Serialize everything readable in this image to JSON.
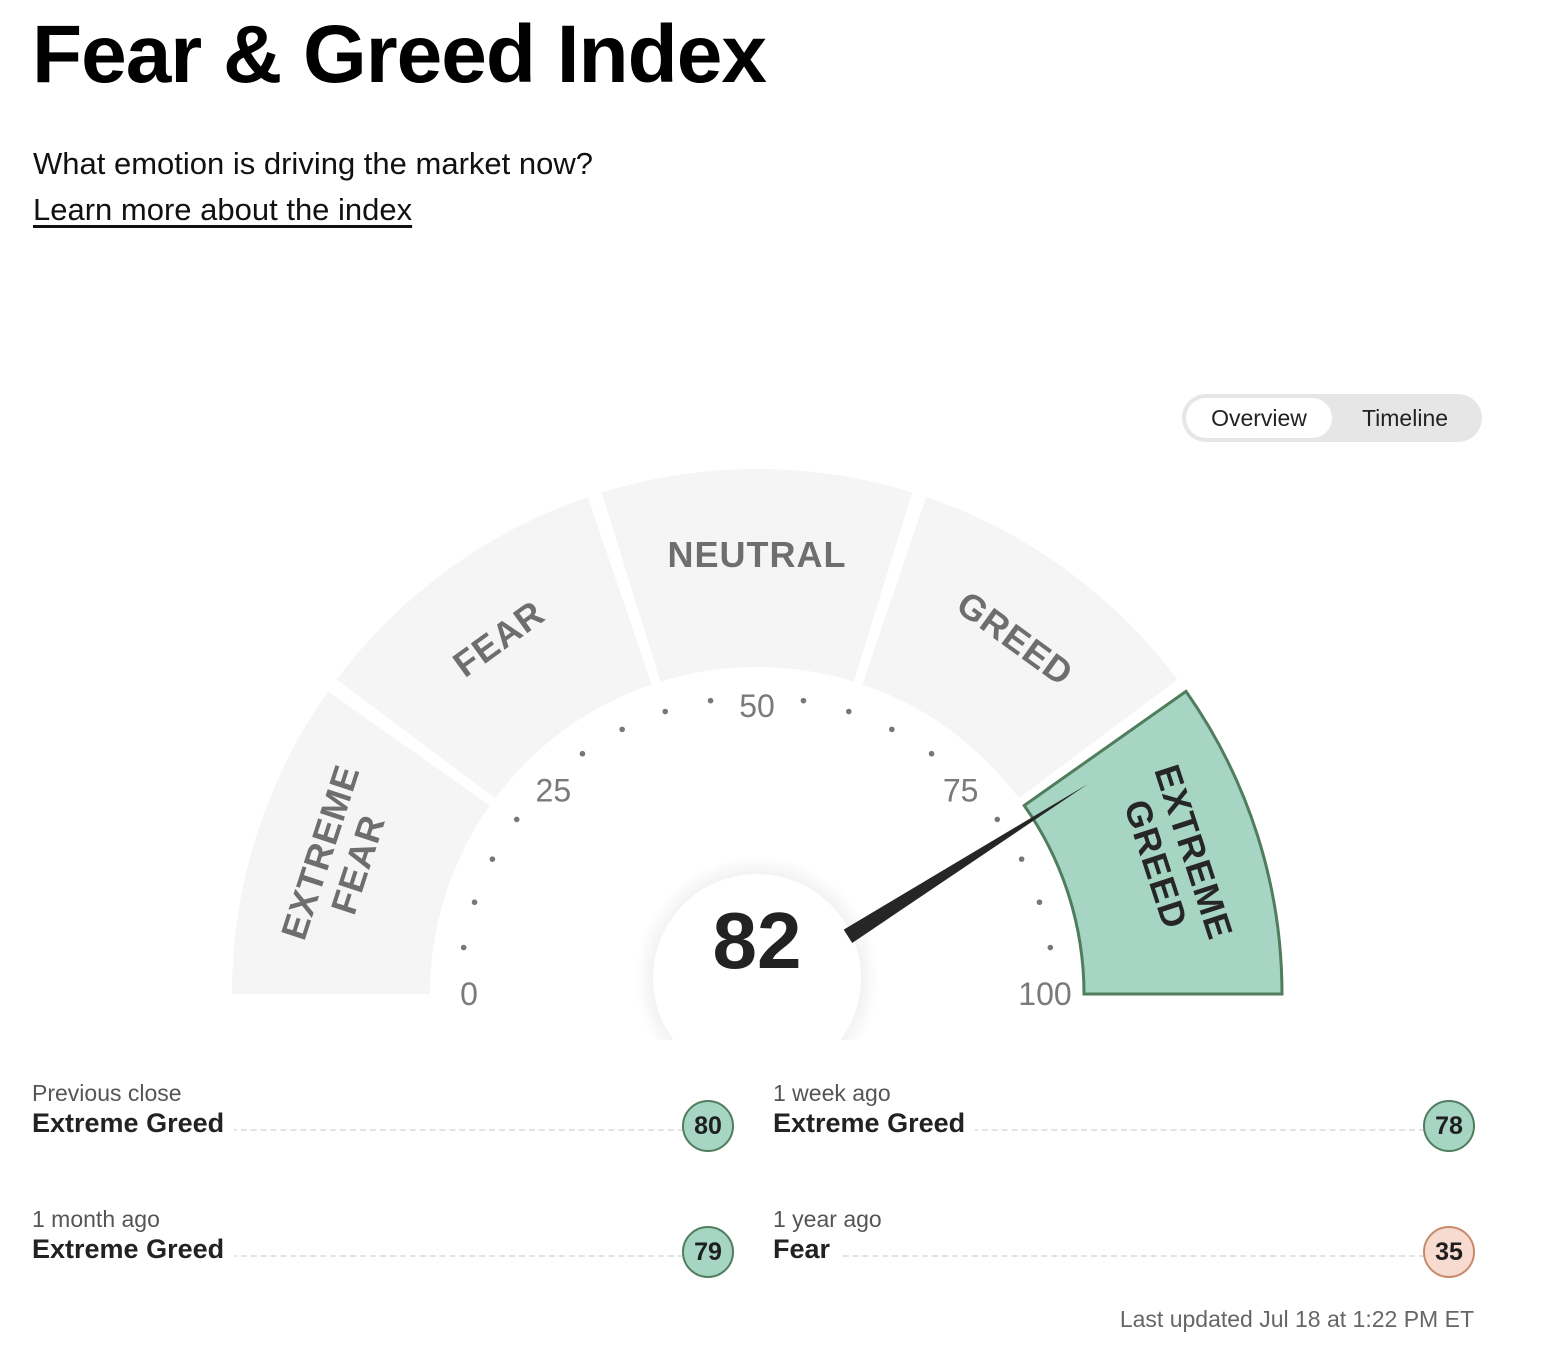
{
  "header": {
    "title": "Fear & Greed Index",
    "subtitle": "What emotion is driving the market now?",
    "learn_link": "Learn more about the index"
  },
  "view_toggle": {
    "options": [
      "Overview",
      "Timeline"
    ],
    "selected": "Overview"
  },
  "gauge": {
    "value": 82,
    "value_label": "82",
    "zones": [
      {
        "label_lines": [
          "EXTREME",
          "FEAR"
        ],
        "active": false
      },
      {
        "label_lines": [
          "FEAR"
        ],
        "active": false
      },
      {
        "label_lines": [
          "NEUTRAL"
        ],
        "active": false
      },
      {
        "label_lines": [
          "GREED"
        ],
        "active": false
      },
      {
        "label_lines": [
          "EXTREME",
          "GREED"
        ],
        "active": true
      }
    ],
    "ticks": [
      "0",
      "25",
      "50",
      "75",
      "100"
    ],
    "colors": {
      "inactive_zone": "#f5f5f5",
      "active_zone": "#a7d5c4",
      "active_zone_border": "#4f7d5d",
      "inactive_label": "#6e6e6e",
      "active_label": "#262626",
      "needle": "#262626"
    }
  },
  "history": [
    {
      "when": "Previous close",
      "rating": "Extreme Greed",
      "value": "80",
      "color": "#a7d5c4",
      "border": "#4f7d5d"
    },
    {
      "when": "1 week ago",
      "rating": "Extreme Greed",
      "value": "78",
      "color": "#a7d5c4",
      "border": "#4f7d5d"
    },
    {
      "when": "1 month ago",
      "rating": "Extreme Greed",
      "value": "79",
      "color": "#a7d5c4",
      "border": "#4f7d5d"
    },
    {
      "when": "1 year ago",
      "rating": "Fear",
      "value": "35",
      "color": "#f7dbd0",
      "border": "#c98a6c"
    }
  ],
  "last_updated": "Last updated Jul 18 at 1:22 PM ET"
}
